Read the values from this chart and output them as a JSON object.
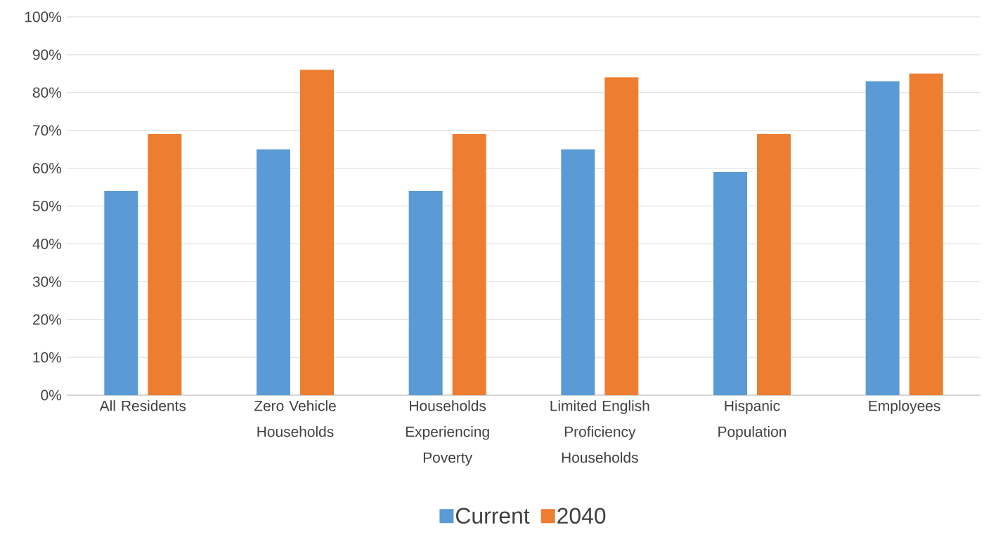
{
  "chart_data": {
    "type": "bar",
    "categories": [
      "All Residents",
      "Zero Vehicle Households",
      "Households Experiencing Poverty",
      "Limited English Proficiency Households",
      "Hispanic Population",
      "Employees"
    ],
    "series": [
      {
        "name": "Current",
        "color": "#5b9bd5",
        "values": [
          54,
          65,
          54,
          65,
          59,
          83
        ]
      },
      {
        "name": "2040",
        "color": "#ed7d31",
        "values": [
          69,
          86,
          69,
          84,
          69,
          85
        ]
      }
    ],
    "ylim": [
      0,
      100
    ],
    "yticks": [
      {
        "value": 0,
        "label": "0%"
      },
      {
        "value": 10,
        "label": "10%"
      },
      {
        "value": 20,
        "label": "20%"
      },
      {
        "value": 30,
        "label": "30%"
      },
      {
        "value": 40,
        "label": "40%"
      },
      {
        "value": 50,
        "label": "50%"
      },
      {
        "value": 60,
        "label": "60%"
      },
      {
        "value": 70,
        "label": "70%"
      },
      {
        "value": 80,
        "label": "80%"
      },
      {
        "value": 90,
        "label": "90%"
      },
      {
        "value": 100,
        "label": "100%"
      }
    ],
    "grid": "y",
    "legend": "bottom"
  }
}
